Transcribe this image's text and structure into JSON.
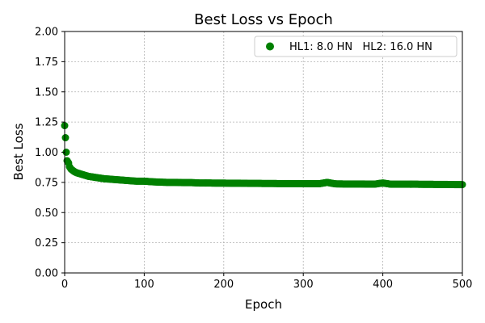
{
  "chart_data": {
    "type": "scatter",
    "title": "Best Loss vs Epoch",
    "xlabel": "Epoch",
    "ylabel": "Best Loss",
    "xlim": [
      0,
      500
    ],
    "ylim": [
      0,
      2.0
    ],
    "xticks": [
      0,
      100,
      200,
      300,
      400,
      500
    ],
    "yticks": [
      "0.00",
      "0.25",
      "0.50",
      "0.75",
      "1.00",
      "1.25",
      "1.50",
      "1.75",
      "2.00"
    ],
    "grid": true,
    "legend_position": "top-right",
    "series": [
      {
        "name": "HL1: 8.0 HN   HL2: 16.0 HN",
        "color": "#008000",
        "x": [
          0,
          1,
          2,
          3,
          4,
          5,
          6,
          8,
          10,
          12,
          15,
          20,
          25,
          30,
          35,
          40,
          45,
          50,
          55,
          60,
          70,
          80,
          90,
          100,
          110,
          120,
          130,
          140,
          150,
          160,
          170,
          180,
          190,
          200,
          210,
          220,
          230,
          240,
          250,
          260,
          270,
          280,
          290,
          300,
          310,
          320,
          330,
          340,
          350,
          360,
          370,
          380,
          390,
          400,
          410,
          420,
          430,
          440,
          450,
          460,
          470,
          480,
          490,
          500
        ],
        "y": [
          1.22,
          1.12,
          1.0,
          0.93,
          0.92,
          0.91,
          0.88,
          0.86,
          0.85,
          0.84,
          0.83,
          0.82,
          0.81,
          0.8,
          0.795,
          0.79,
          0.785,
          0.78,
          0.778,
          0.775,
          0.77,
          0.765,
          0.76,
          0.76,
          0.755,
          0.752,
          0.75,
          0.75,
          0.748,
          0.748,
          0.745,
          0.745,
          0.744,
          0.744,
          0.743,
          0.743,
          0.742,
          0.742,
          0.741,
          0.741,
          0.74,
          0.74,
          0.74,
          0.74,
          0.739,
          0.739,
          0.75,
          0.738,
          0.737,
          0.737,
          0.737,
          0.736,
          0.736,
          0.745,
          0.735,
          0.735,
          0.735,
          0.735,
          0.734,
          0.734,
          0.733,
          0.733,
          0.732,
          0.732
        ]
      }
    ]
  }
}
